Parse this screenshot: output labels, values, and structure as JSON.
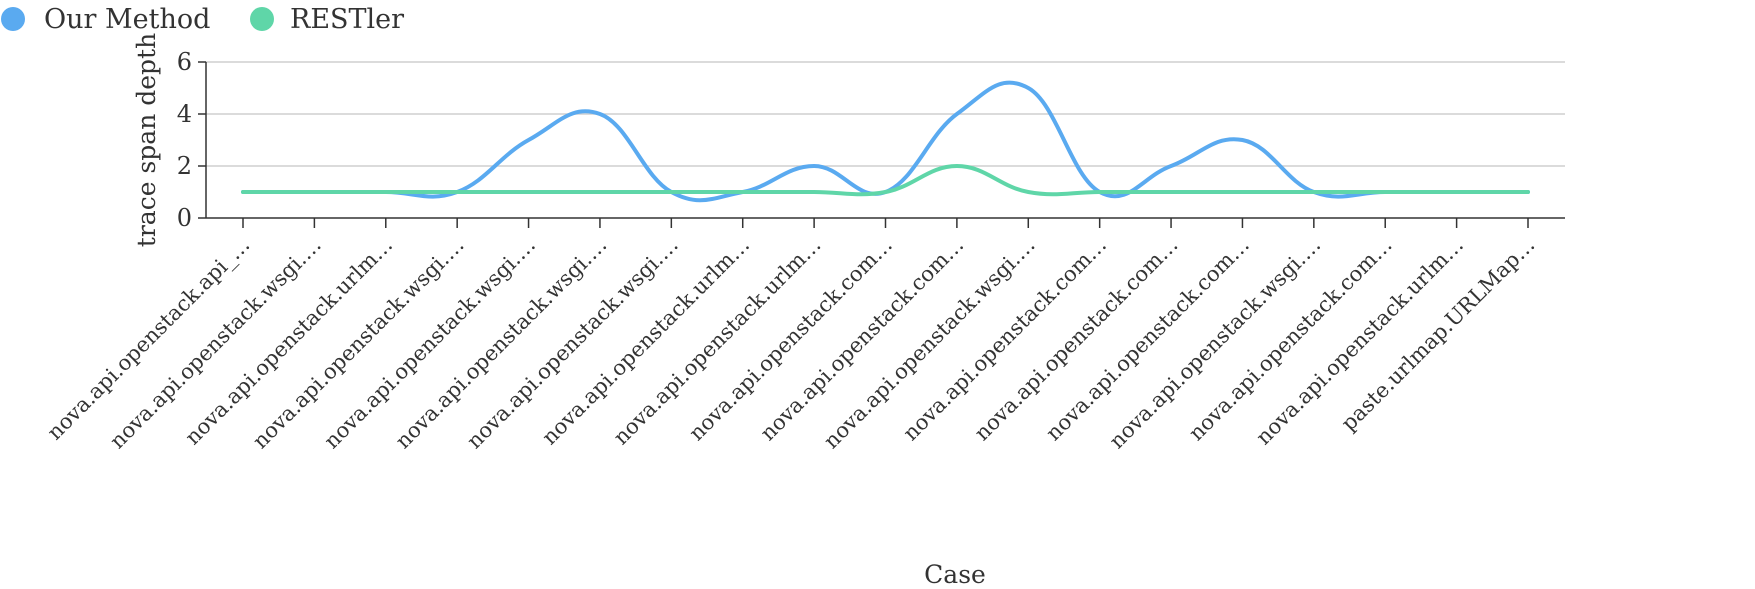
{
  "chart_data": {
    "type": "line",
    "title": "",
    "xlabel": "Case",
    "ylabel": "trace span depth",
    "ylim": [
      0,
      6
    ],
    "yticks": [
      0,
      2,
      4,
      6
    ],
    "grid": true,
    "legend_position": "top-left",
    "categories": [
      "nova.api.openstack.api_…",
      "nova.api.openstack.wsgi.…",
      "nova.api.openstack.urlm…",
      "nova.api.openstack.wsgi.…",
      "nova.api.openstack.wsgi.…",
      "nova.api.openstack.wsgi.…",
      "nova.api.openstack.wsgi.…",
      "nova.api.openstack.urlm…",
      "nova.api.openstack.urlm…",
      "nova.api.openstack.com…",
      "nova.api.openstack.com…",
      "nova.api.openstack.wsgi.…",
      "nova.api.openstack.com…",
      "nova.api.openstack.com…",
      "nova.api.openstack.com…",
      "nova.api.openstack.wsgi.…",
      "nova.api.openstack.com…",
      "nova.api.openstack.urlm…",
      "paste.urlmap.URLMap…"
    ],
    "series": [
      {
        "name": "Our Method",
        "color": "#5aaaf0",
        "values": [
          1,
          1,
          1,
          1,
          3,
          4,
          1,
          1,
          2,
          1,
          4,
          5,
          1,
          2,
          3,
          1,
          1,
          1,
          1
        ]
      },
      {
        "name": "RESTler",
        "color": "#5fd6a8",
        "values": [
          1,
          1,
          1,
          1,
          1,
          1,
          1,
          1,
          1,
          1,
          2,
          1,
          1,
          1,
          1,
          1,
          1,
          1,
          1
        ]
      }
    ]
  }
}
